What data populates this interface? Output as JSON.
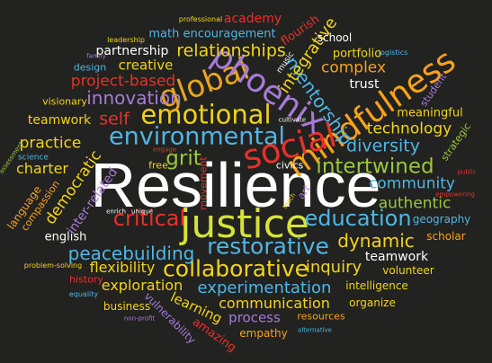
{
  "words": {
    "resilience": {
      "text": "Resilience",
      "color": "#ffffff"
    },
    "justice": {
      "text": "justice",
      "color": "#d4e23a"
    },
    "environmental": {
      "text": "environmental",
      "color": "#4fb6e6"
    },
    "emotional": {
      "text": "emotional",
      "color": "#f0d21a"
    },
    "mindfulness": {
      "text": "mindfulness",
      "color": "#f7a21b"
    },
    "social": {
      "text": "social",
      "color": "#e8312c"
    },
    "global": {
      "text": "global",
      "color": "#e8a51c"
    },
    "phoenix": {
      "text": "phoenix",
      "color": "#a77bd8"
    },
    "restorative": {
      "text": "restorative",
      "color": "#4fb6e6"
    },
    "collaborative": {
      "text": "collaborative",
      "color": "#f3d41b"
    },
    "education": {
      "text": "education",
      "color": "#4fb6e6"
    },
    "intertwined": {
      "text": "intertwined",
      "color": "#9ac83c"
    },
    "innovation": {
      "text": "innovation",
      "color": "#a77bd8"
    },
    "critical": {
      "text": "critical",
      "color": "#e8312c"
    },
    "peacebuilding": {
      "text": "peacebuilding",
      "color": "#4fb6e6"
    },
    "experimentation": {
      "text": "experimentation",
      "color": "#4fb6e6"
    },
    "dynamic": {
      "text": "dynamic",
      "color": "#f3d41b"
    },
    "diversity": {
      "text": "diversity",
      "color": "#4fb6e6"
    },
    "communication": {
      "text": "communication",
      "color": "#f3d41b"
    },
    "relationships": {
      "text": "relationships",
      "color": "#f3d41b"
    },
    "grit": {
      "text": "grit",
      "color": "#9ac83c"
    },
    "inquiry": {
      "text": "inquiry",
      "color": "#f3d41b"
    },
    "self": {
      "text": "self",
      "color": "#e8312c"
    },
    "project_based": {
      "text": "project-based",
      "color": "#e8312c"
    },
    "mentorship": {
      "text": "mentorship",
      "color": "#4fb6e6"
    },
    "integrative": {
      "text": "integrative",
      "color": "#f3d41b"
    },
    "complex": {
      "text": "complex",
      "color": "#f7a21b"
    },
    "technology": {
      "text": "technology",
      "color": "#f3d41b"
    },
    "community": {
      "text": "community",
      "color": "#4fb6e6"
    },
    "authentic": {
      "text": "authentic",
      "color": "#9ac83c"
    },
    "practice": {
      "text": "practice",
      "color": "#f3d41b"
    },
    "charter": {
      "text": "charter",
      "color": "#f3d41b"
    },
    "democratic": {
      "text": "democratic",
      "color": "#f3d41b"
    },
    "flexibility": {
      "text": "flexibility",
      "color": "#f3d41b"
    },
    "exploration": {
      "text": "exploration",
      "color": "#f3d41b"
    },
    "learning": {
      "text": "learning",
      "color": "#f3d41b"
    },
    "process": {
      "text": "process",
      "color": "#a77bd8"
    },
    "teamwork_left": {
      "text": "teamwork",
      "color": "#f3d41b"
    },
    "teamwork_right": {
      "text": "teamwork",
      "color": "#ffffff"
    },
    "creative": {
      "text": "creative",
      "color": "#f3d41b"
    },
    "partnership": {
      "text": "partnership",
      "color": "#ffffff"
    },
    "math_encouragement": {
      "text": "math encouragement",
      "color": "#4fb6e6"
    },
    "academy": {
      "text": "academy",
      "color": "#e8312c"
    },
    "professional": {
      "text": "professional",
      "color": "#f3d41b"
    },
    "school": {
      "text": "school",
      "color": "#ffffff"
    },
    "flourish": {
      "text": "flourish",
      "color": "#e8312c"
    },
    "portfolio": {
      "text": "portfolio",
      "color": "#f3d41b"
    },
    "logistics": {
      "text": "logistics",
      "color": "#4fb6e6"
    },
    "trust": {
      "text": "trust",
      "color": "#ffffff"
    },
    "meaningful": {
      "text": "meaningful",
      "color": "#f3d41b"
    },
    "student": {
      "text": "student",
      "color": "#a77bd8"
    },
    "strategic": {
      "text": "strategic",
      "color": "#9ac83c"
    },
    "geography": {
      "text": "geography",
      "color": "#4fb6e6"
    },
    "scholar": {
      "text": "scholar",
      "color": "#f7a21b"
    },
    "volunteer": {
      "text": "volunteer",
      "color": "#f3d41b"
    },
    "intelligence": {
      "text": "intelligence",
      "color": "#f3d41b"
    },
    "organize": {
      "text": "organize",
      "color": "#f3d41b"
    },
    "resources": {
      "text": "resources",
      "color": "#f7a21b"
    },
    "empathy": {
      "text": "empathy",
      "color": "#f7a21b"
    },
    "alternative": {
      "text": "alternative",
      "color": "#4fb6e6"
    },
    "amazing": {
      "text": "amazing",
      "color": "#e8312c"
    },
    "vulnerability": {
      "text": "vulnerability",
      "color": "#a77bd8"
    },
    "business": {
      "text": "business",
      "color": "#f3d41b"
    },
    "non_profit": {
      "text": "non-profit",
      "color": "#a77bd8"
    },
    "equality": {
      "text": "equality",
      "color": "#4fb6e6"
    },
    "history": {
      "text": "history",
      "color": "#e8312c"
    },
    "problem_solving": {
      "text": "problem-solving",
      "color": "#f3d41b"
    },
    "english": {
      "text": "english",
      "color": "#ffffff"
    },
    "language": {
      "text": "language",
      "color": "#f7a21b"
    },
    "compassion": {
      "text": "compassion",
      "color": "#f7a21b"
    },
    "assessment": {
      "text": "assessment",
      "color": "#9ac83c"
    },
    "science": {
      "text": "science",
      "color": "#4fb6e6"
    },
    "visionary": {
      "text": "visionary",
      "color": "#f3d41b"
    },
    "design": {
      "text": "design",
      "color": "#4fb6e6"
    },
    "family": {
      "text": "family",
      "color": "#a77bd8"
    },
    "leadership": {
      "text": "leadership",
      "color": "#f3d41b"
    },
    "music": {
      "text": "music",
      "color": "#ffffff"
    },
    "cultivate": {
      "text": "cultivate",
      "color": "#ffffff"
    },
    "free": {
      "text": "free",
      "color": "#f3d41b"
    },
    "engage": {
      "text": "engage",
      "color": "#e8312c"
    },
    "movement": {
      "text": "movement",
      "color": "#e8312c"
    },
    "civics": {
      "text": "civics",
      "color": "#ffffff"
    },
    "teach": {
      "text": "teach",
      "color": "#f3d41b"
    },
    "art": {
      "text": "art",
      "color": "#a77bd8"
    },
    "enrich": {
      "text": "enrich",
      "color": "#ffffff"
    },
    "unique": {
      "text": "unique",
      "color": "#ffffff"
    },
    "inter_related": {
      "text": "inter-related",
      "color": "#a77bd8"
    },
    "empowering": {
      "text": "empowering",
      "color": "#e8312c"
    },
    "public": {
      "text": "public",
      "color": "#e8312c"
    }
  }
}
